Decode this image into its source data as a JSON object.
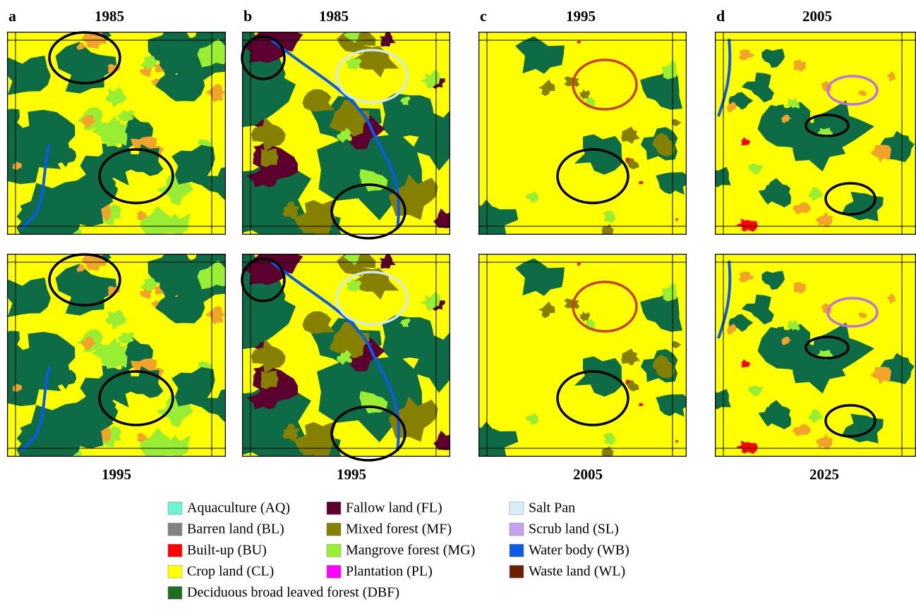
{
  "panels": [
    {
      "letter": "a",
      "top_year": "1985",
      "bottom_year": "1995"
    },
    {
      "letter": "b",
      "top_year": "1985",
      "bottom_year": "1995"
    },
    {
      "letter": "c",
      "top_year": "1995",
      "bottom_year": "2005"
    },
    {
      "letter": "d",
      "top_year": "2005",
      "bottom_year": "2025"
    }
  ],
  "legend": [
    {
      "label": "Aquaculture (AQ)",
      "color": "#6ef2d4"
    },
    {
      "label": "Barren land (BL)",
      "color": "#828282"
    },
    {
      "label": "Built-up (BU)",
      "color": "#ff0000"
    },
    {
      "label": "Crop land (CL)",
      "color": "#ffff00"
    },
    {
      "label": "Deciduous broad leaved forest (DBF)",
      "color": "#1f6e1f"
    },
    {
      "label": "Fallow land (FL)",
      "color": "#5c0030"
    },
    {
      "label": "Mixed forest (MF)",
      "color": "#858000"
    },
    {
      "label": "Mangrove forest (MG)",
      "color": "#99ee33"
    },
    {
      "label": "Plantation (PL)",
      "color": "#ff00ff"
    },
    {
      "label": "Salt Pan",
      "color": "#d8eef5"
    },
    {
      "label": "Scrub land (SL)",
      "color": "#c8a0f0"
    },
    {
      "label": "Water body (WB)",
      "color": "#0a5ce6"
    },
    {
      "label": "Waste land (WL)",
      "color": "#6b2000"
    }
  ]
}
